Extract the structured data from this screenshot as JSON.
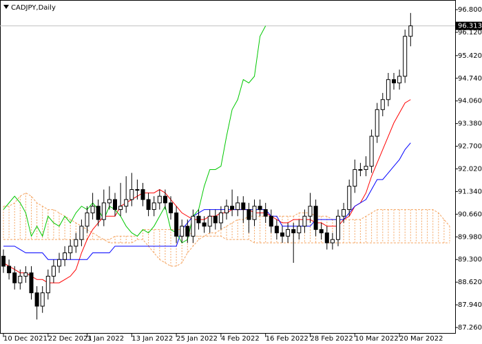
{
  "chart_data": {
    "type": "candlestick",
    "title": "CADJPY,Daily",
    "categories": [
      "10 Dec 2021",
      null,
      null,
      null,
      null,
      null,
      null,
      null,
      "22 Dec 2021",
      null,
      null,
      null,
      null,
      null,
      null,
      "3 Jan 2022",
      null,
      null,
      null,
      null,
      null,
      null,
      null,
      "13 Jan 2022",
      null,
      null,
      null,
      null,
      null,
      null,
      null,
      "25 Jan 2022",
      null,
      null,
      null,
      null,
      null,
      null,
      null,
      "4 Feb 2022",
      null,
      null,
      null,
      null,
      null,
      null,
      null,
      "16 Feb 2022",
      null,
      null,
      null,
      null,
      null,
      null,
      null,
      "28 Feb 2022",
      null,
      null,
      null,
      null,
      null,
      null,
      null,
      "10 Mar 2022",
      null,
      null,
      null,
      null,
      null,
      null,
      null,
      "20 Mar 2022",
      null,
      null,
      null,
      null,
      null,
      null,
      null,
      null,
      null
    ],
    "open": [
      89.4,
      89.1,
      88.9,
      88.6,
      88.8,
      88.9,
      88.3,
      87.9,
      88.3,
      88.8,
      89.1,
      89.3,
      89.5,
      89.7,
      89.9,
      90.3,
      90.7,
      90.9,
      90.5,
      91.0,
      91.1,
      90.8,
      90.9,
      91.1,
      91.4,
      91.4,
      91.1,
      90.8,
      91.0,
      91.2,
      91.0,
      90.7,
      90.0,
      90.3,
      90.0,
      90.6,
      90.4,
      90.3,
      90.6,
      90.4,
      90.7,
      90.9,
      90.8,
      91.0,
      90.8,
      90.5,
      90.9,
      90.8,
      90.6,
      90.3,
      90.1,
      90.0,
      90.2,
      90.1,
      90.3,
      90.6,
      90.9,
      90.2,
      90.1,
      89.8,
      89.9,
      90.6,
      90.8,
      91.5,
      92.0,
      92.0,
      92.1,
      93.0,
      93.8,
      94.1,
      94.7,
      94.6,
      94.8,
      96.0,
      null,
      null,
      null,
      null,
      null,
      null,
      null
    ],
    "high": [
      89.6,
      89.3,
      89.1,
      89.0,
      89.1,
      89.1,
      88.5,
      88.5,
      89.0,
      89.3,
      89.5,
      89.7,
      89.9,
      90.1,
      90.5,
      90.9,
      91.3,
      91.1,
      91.4,
      91.5,
      91.3,
      91.6,
      91.8,
      91.9,
      91.7,
      91.6,
      91.3,
      91.2,
      91.4,
      91.4,
      91.2,
      90.9,
      90.5,
      90.5,
      90.8,
      90.8,
      90.6,
      90.8,
      90.8,
      90.9,
      91.1,
      91.4,
      91.2,
      91.2,
      91.0,
      91.1,
      91.1,
      91.0,
      90.8,
      90.5,
      90.3,
      90.4,
      90.4,
      90.5,
      90.8,
      91.3,
      91.1,
      90.4,
      90.3,
      90.1,
      90.8,
      91.0,
      91.7,
      92.3,
      92.2,
      92.4,
      93.2,
      94.0,
      94.3,
      94.9,
      94.9,
      95.0,
      96.2,
      96.7,
      null,
      null,
      null,
      null,
      null,
      null,
      null
    ],
    "low": [
      88.9,
      88.7,
      88.4,
      88.4,
      88.6,
      88.1,
      87.5,
      87.7,
      88.1,
      88.6,
      88.9,
      89.1,
      89.3,
      89.5,
      89.7,
      90.1,
      90.5,
      90.3,
      90.3,
      90.8,
      90.6,
      90.6,
      90.7,
      90.9,
      91.1,
      90.9,
      90.6,
      90.6,
      90.8,
      90.8,
      90.5,
      89.8,
      89.8,
      89.8,
      89.8,
      90.2,
      90.1,
      90.1,
      90.2,
      90.2,
      90.5,
      90.6,
      90.6,
      90.4,
      90.1,
      90.3,
      90.6,
      90.4,
      90.1,
      89.9,
      89.8,
      89.8,
      89.2,
      89.9,
      90.1,
      90.4,
      90.0,
      89.9,
      89.6,
      89.6,
      89.7,
      90.4,
      90.6,
      91.3,
      91.8,
      91.8,
      91.9,
      92.8,
      93.6,
      93.9,
      94.4,
      94.4,
      94.6,
      95.7,
      null,
      null,
      null,
      null,
      null,
      null,
      null
    ],
    "close": [
      89.1,
      88.9,
      88.6,
      88.8,
      88.9,
      88.3,
      87.9,
      88.3,
      88.8,
      89.1,
      89.3,
      89.5,
      89.7,
      89.9,
      90.3,
      90.7,
      90.9,
      90.5,
      91.0,
      91.1,
      90.8,
      90.9,
      91.1,
      91.4,
      91.4,
      91.1,
      90.8,
      91.0,
      91.2,
      91.0,
      90.7,
      90.0,
      90.3,
      90.0,
      90.6,
      90.4,
      90.3,
      90.6,
      90.4,
      90.7,
      90.9,
      90.8,
      91.0,
      90.8,
      90.5,
      90.9,
      90.8,
      90.6,
      90.3,
      90.1,
      90.0,
      90.2,
      90.1,
      90.3,
      90.6,
      90.9,
      90.2,
      90.1,
      89.8,
      89.9,
      90.6,
      90.8,
      91.5,
      92.0,
      92.0,
      92.1,
      93.0,
      93.8,
      94.1,
      94.7,
      94.6,
      94.8,
      96.0,
      96.313,
      null,
      null,
      null,
      null,
      null,
      null,
      null
    ],
    "lines": [
      {
        "color": "#ff0000",
        "values": [
          89.2,
          89.1,
          89.0,
          88.9,
          88.9,
          88.8,
          88.7,
          88.7,
          88.6,
          88.6,
          88.6,
          88.7,
          88.8,
          89.0,
          89.5,
          89.9,
          90.2,
          90.4,
          90.6,
          90.6,
          90.6,
          90.9,
          91.0,
          91.1,
          91.2,
          91.3,
          91.3,
          91.3,
          91.4,
          91.3,
          91.1,
          90.9,
          90.7,
          90.6,
          90.5,
          90.5,
          90.5,
          90.6,
          90.6,
          90.7,
          90.7,
          90.8,
          90.8,
          90.8,
          90.8,
          90.7,
          90.7,
          90.7,
          90.6,
          90.5,
          90.4,
          90.4,
          90.5,
          90.5,
          90.5,
          90.5,
          90.4,
          90.4,
          90.3,
          90.3,
          90.3,
          90.5,
          90.6,
          90.9,
          91.0,
          91.3,
          91.8,
          92.2,
          92.6,
          93.0,
          93.4,
          93.7,
          94.0,
          94.1,
          null,
          null,
          null,
          null,
          null,
          null,
          null
        ]
      },
      {
        "color": "#0000ff",
        "values": [
          89.7,
          89.7,
          89.7,
          89.6,
          89.5,
          89.5,
          89.5,
          89.5,
          89.3,
          89.3,
          89.3,
          89.3,
          89.3,
          89.3,
          89.3,
          89.3,
          89.5,
          89.5,
          89.5,
          89.5,
          89.7,
          89.7,
          89.7,
          89.7,
          89.7,
          89.7,
          89.7,
          89.7,
          89.7,
          89.7,
          89.7,
          89.7,
          90.2,
          90.4,
          90.6,
          90.7,
          90.8,
          90.8,
          90.8,
          90.8,
          90.8,
          90.8,
          90.8,
          90.8,
          90.8,
          90.8,
          90.8,
          90.8,
          90.6,
          90.6,
          90.3,
          90.3,
          90.3,
          90.3,
          90.3,
          90.3,
          90.5,
          90.5,
          90.5,
          90.5,
          90.5,
          90.5,
          90.7,
          90.9,
          91.0,
          91.1,
          91.4,
          91.7,
          91.7,
          91.9,
          92.1,
          92.3,
          92.6,
          92.8,
          null,
          null,
          null,
          null,
          null,
          null,
          null
        ]
      },
      {
        "color": "#00c800",
        "values": [
          90.8,
          91.0,
          91.2,
          91.0,
          90.7,
          90.0,
          90.3,
          90.0,
          90.6,
          90.4,
          90.3,
          90.6,
          90.4,
          90.7,
          90.9,
          90.8,
          91.0,
          90.8,
          90.5,
          90.9,
          90.8,
          90.6,
          90.3,
          90.1,
          90.0,
          90.2,
          90.1,
          90.3,
          90.6,
          90.9,
          90.2,
          90.1,
          89.8,
          89.9,
          90.6,
          90.8,
          91.5,
          92.0,
          92.0,
          92.1,
          93.0,
          93.8,
          94.1,
          94.7,
          94.6,
          94.8,
          96.0,
          96.313,
          null,
          null,
          null,
          null,
          null,
          null,
          null,
          null,
          null,
          null,
          null,
          null,
          null,
          null,
          null,
          null,
          null,
          null,
          null,
          null,
          null,
          null,
          null,
          null,
          null,
          null,
          null,
          null,
          null,
          null,
          null,
          null,
          null
        ]
      }
    ],
    "cloud": {
      "color": "#f4a460",
      "senkou_a": [
        90.9,
        90.9,
        91.0,
        91.2,
        91.3,
        91.2,
        91.0,
        90.9,
        90.8,
        90.8,
        90.7,
        90.6,
        90.5,
        90.4,
        90.3,
        90.2,
        90.1,
        90.0,
        89.9,
        89.8,
        89.8,
        89.8,
        89.8,
        89.8,
        89.9,
        89.9,
        89.7,
        89.5,
        89.3,
        89.2,
        89.1,
        89.1,
        89.2,
        89.5,
        89.7,
        89.9,
        90.0,
        90.1,
        90.1,
        90.2,
        90.3,
        90.4,
        90.5,
        90.5,
        90.6,
        90.6,
        90.6,
        90.6,
        90.6,
        90.6,
        90.6,
        90.6,
        90.6,
        90.7,
        90.7,
        90.7,
        90.6,
        90.6,
        90.6,
        90.5,
        90.5,
        90.5,
        90.5,
        90.5,
        90.5,
        90.6,
        90.7,
        90.8,
        90.8,
        90.8,
        90.8,
        90.8,
        90.8,
        90.8,
        90.8,
        90.8,
        90.8,
        90.8,
        90.7,
        90.5,
        90.3
      ],
      "senkou_b": [
        89.9,
        89.9,
        89.9,
        89.9,
        89.9,
        89.9,
        89.9,
        89.9,
        89.9,
        89.9,
        89.9,
        89.9,
        89.9,
        89.9,
        89.9,
        89.9,
        89.9,
        89.9,
        89.9,
        89.9,
        90.0,
        90.0,
        90.0,
        90.0,
        90.0,
        90.2,
        90.2,
        90.2,
        90.2,
        90.2,
        90.2,
        90.2,
        90.2,
        90.2,
        90.0,
        90.0,
        90.0,
        90.0,
        90.0,
        90.0,
        89.9,
        89.9,
        89.9,
        89.9,
        89.9,
        89.8,
        89.8,
        89.8,
        89.8,
        89.8,
        89.8,
        89.8,
        89.8,
        89.8,
        89.8,
        89.8,
        89.8,
        89.8,
        89.8,
        89.8,
        89.8,
        89.8,
        89.8,
        89.8,
        89.8,
        89.8,
        89.8,
        89.8,
        89.8,
        89.8,
        89.8,
        89.8,
        89.8,
        89.8,
        89.8,
        89.8,
        89.8,
        89.8,
        89.8,
        89.8,
        89.8
      ]
    },
    "ylim": [
      87.26,
      96.8
    ],
    "yticks": [
      {
        "value": 96.8,
        "label": "96.800"
      },
      {
        "value": 96.12,
        "label": "96.120"
      },
      {
        "value": 95.42,
        "label": "95.420"
      },
      {
        "value": 94.74,
        "label": "94.740"
      },
      {
        "value": 94.06,
        "label": "94.060"
      },
      {
        "value": 93.38,
        "label": "93.380"
      },
      {
        "value": 92.7,
        "label": "92.700"
      },
      {
        "value": 92.02,
        "label": "92.020"
      },
      {
        "value": 91.34,
        "label": "91.340"
      },
      {
        "value": 90.66,
        "label": "90.660"
      },
      {
        "value": 89.98,
        "label": "89.980"
      },
      {
        "value": 89.3,
        "label": "89.300"
      },
      {
        "value": 88.62,
        "label": "88.620"
      },
      {
        "value": 87.94,
        "label": "87.940"
      },
      {
        "value": 87.26,
        "label": "87.260"
      }
    ]
  }
}
